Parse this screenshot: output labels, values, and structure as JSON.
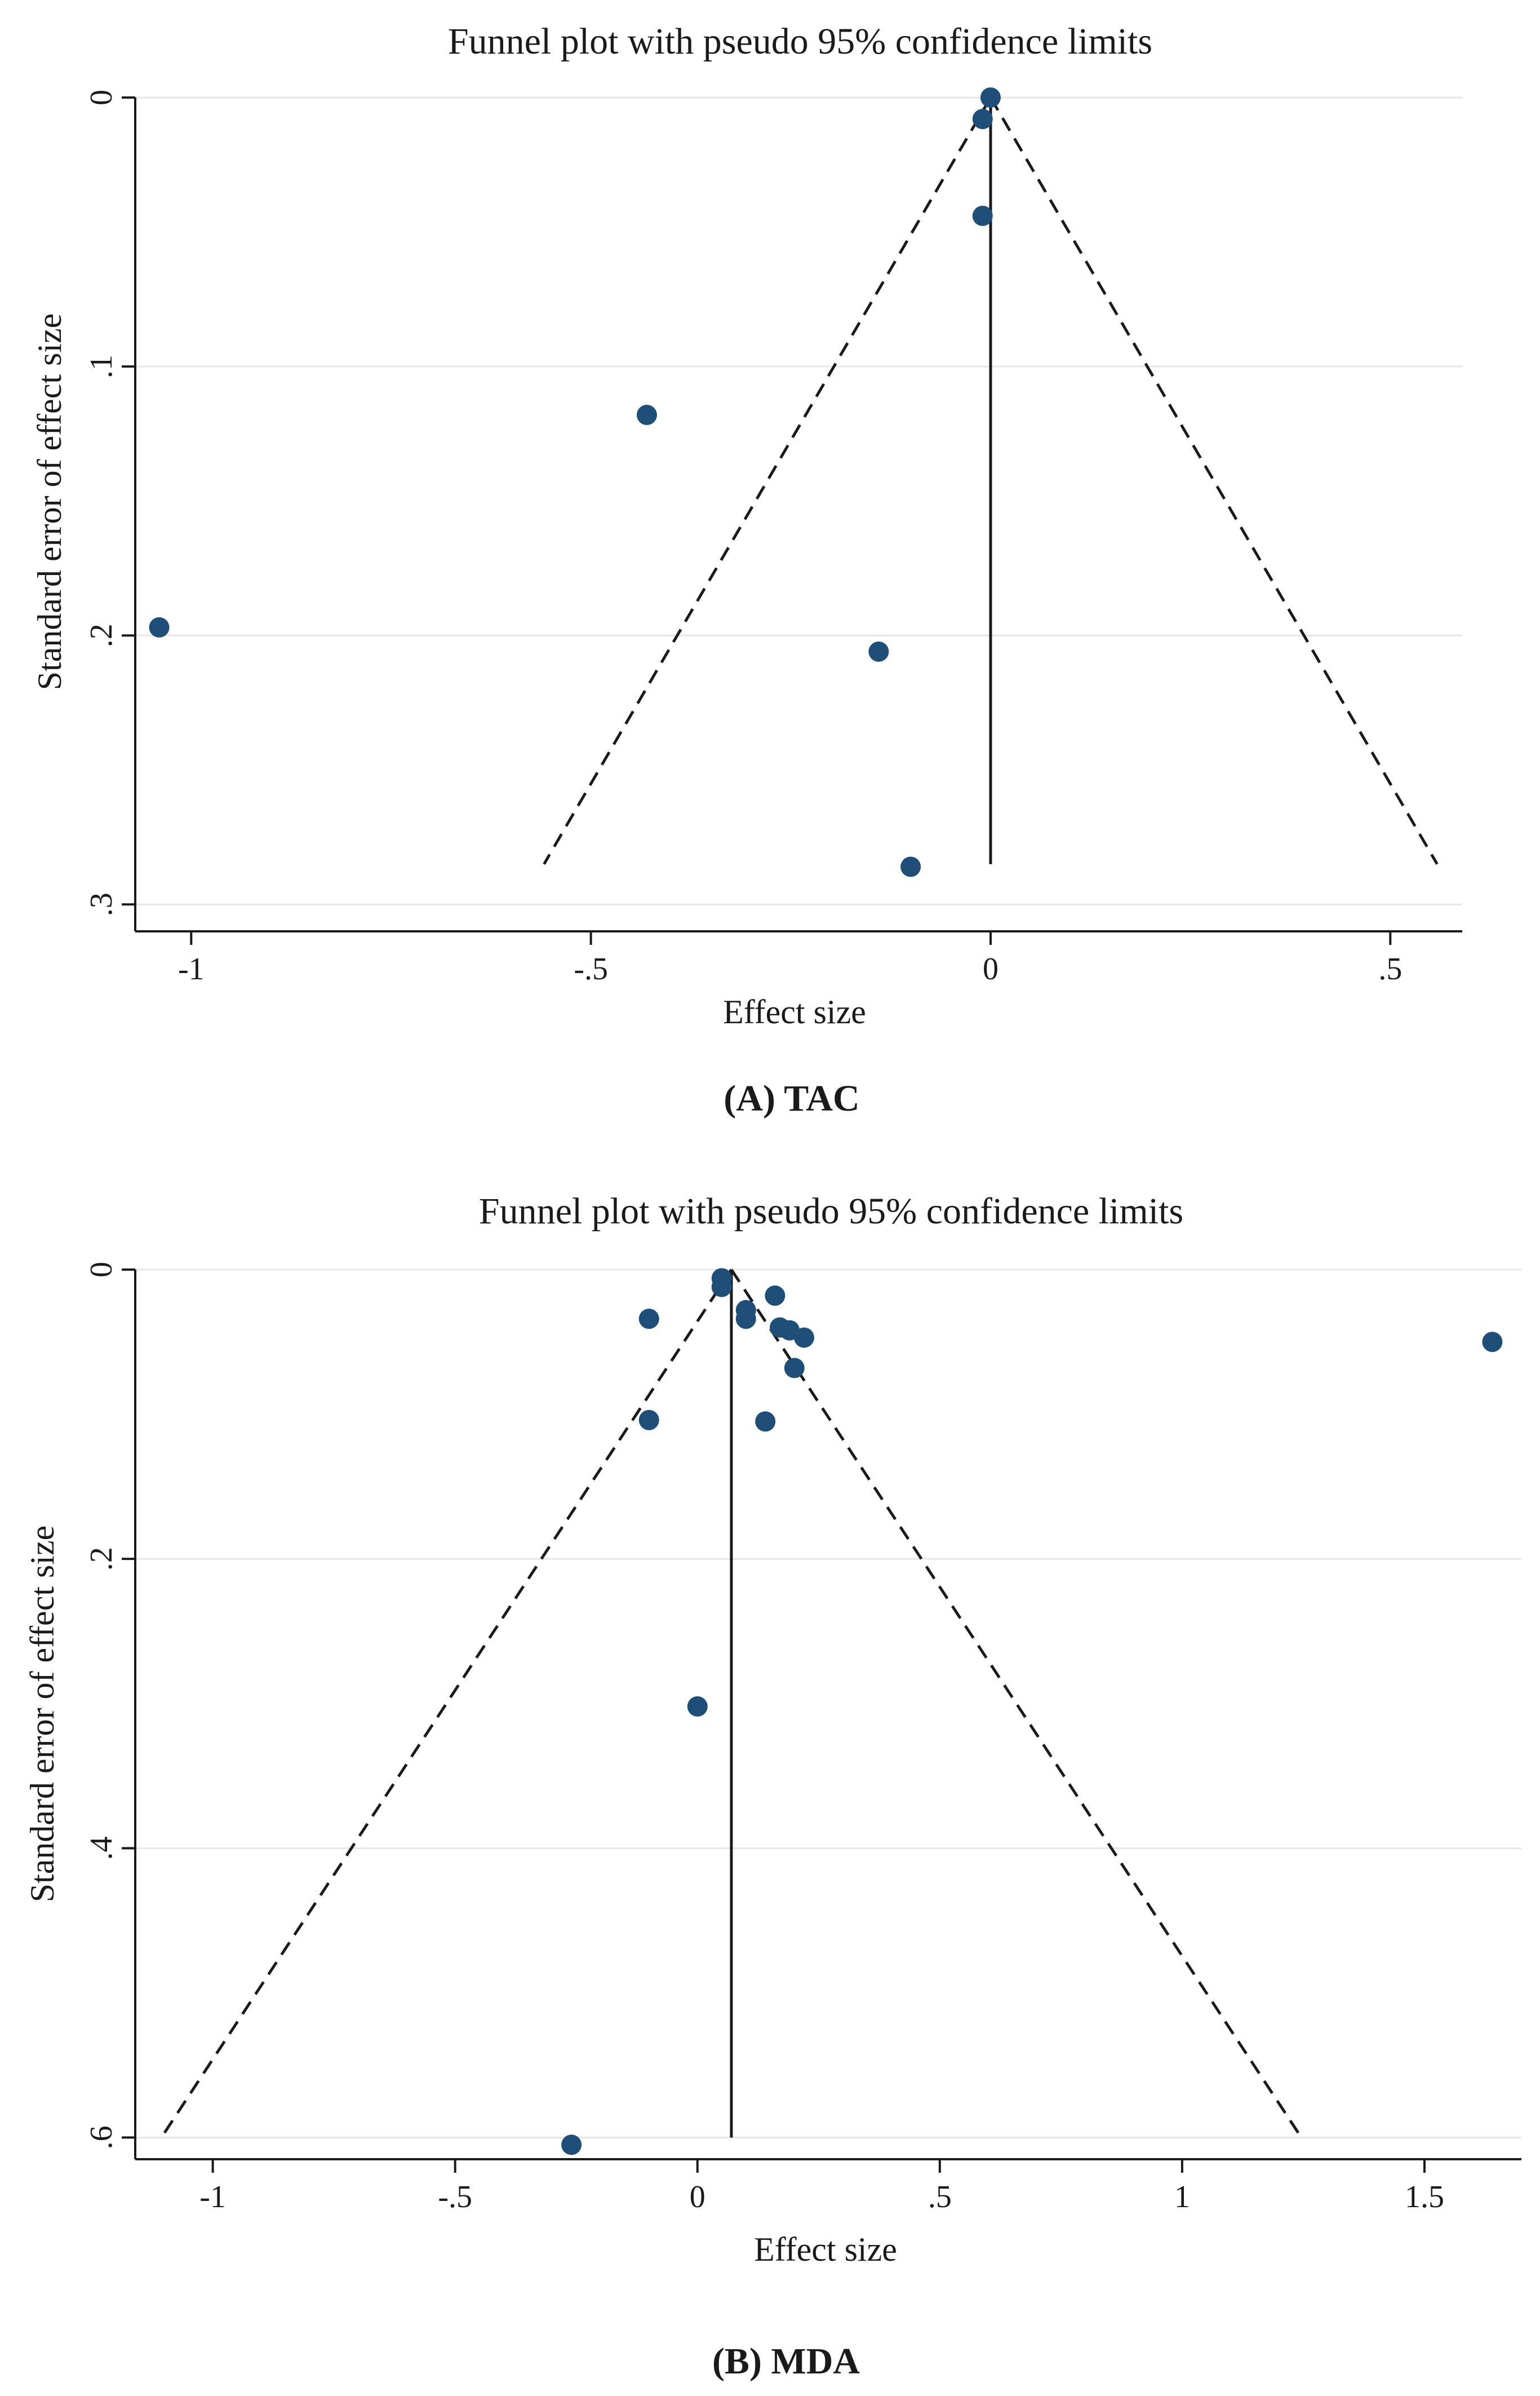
{
  "chart_data": [
    {
      "type": "scatter",
      "panel": "A",
      "title": "Funnel plot with pseudo 95% confidence limits",
      "xlabel": "Effect size",
      "ylabel": "Standard error of effect size",
      "caption": "(A) TAC",
      "xlim": [
        -1.07,
        0.59
      ],
      "ylim": [
        0,
        0.31
      ],
      "y_inverted": true,
      "xticks": [
        -1,
        -0.5,
        0,
        0.5
      ],
      "xtick_labels": [
        "-1",
        "-.5",
        "0",
        ".5"
      ],
      "yticks": [
        0,
        0.1,
        0.2,
        0.3
      ],
      "ytick_labels": [
        "0",
        ".1",
        ".2",
        ".3"
      ],
      "grid": "horizontal",
      "pooled_effect": 0.0,
      "funnel_max_se": 0.285,
      "marker_color": "#1f4e79",
      "points": [
        {
          "x": 0.0,
          "y": 0.0
        },
        {
          "x": -0.01,
          "y": 0.008
        },
        {
          "x": -0.01,
          "y": 0.044
        },
        {
          "x": -0.43,
          "y": 0.118
        },
        {
          "x": -1.04,
          "y": 0.197
        },
        {
          "x": -0.14,
          "y": 0.206
        },
        {
          "x": -0.1,
          "y": 0.286
        }
      ]
    },
    {
      "type": "scatter",
      "panel": "B",
      "title": "Funnel plot with pseudo 95% confidence limits",
      "xlabel": "Effect size",
      "ylabel": "Standard error of effect size",
      "caption": "(B) MDA",
      "xlim": [
        -1.16,
        1.7
      ],
      "ylim": [
        0,
        0.615
      ],
      "y_inverted": true,
      "xticks": [
        -1,
        -0.5,
        0,
        0.5,
        1,
        1.5
      ],
      "xtick_labels": [
        "-1",
        "-.5",
        "0",
        ".5",
        "1",
        "1.5"
      ],
      "yticks": [
        0,
        0.2,
        0.4,
        0.6
      ],
      "ytick_labels": [
        "0",
        ".2",
        ".4",
        ".6"
      ],
      "grid": "horizontal",
      "pooled_effect": 0.07,
      "funnel_max_se": 0.6,
      "marker_color": "#1f4e79",
      "points": [
        {
          "x": 0.05,
          "y": 0.006
        },
        {
          "x": 0.05,
          "y": 0.012
        },
        {
          "x": 0.16,
          "y": 0.018
        },
        {
          "x": 0.1,
          "y": 0.028
        },
        {
          "x": 0.1,
          "y": 0.034
        },
        {
          "x": -0.1,
          "y": 0.034
        },
        {
          "x": 0.17,
          "y": 0.04
        },
        {
          "x": 0.19,
          "y": 0.042
        },
        {
          "x": 0.22,
          "y": 0.047
        },
        {
          "x": 1.64,
          "y": 0.05
        },
        {
          "x": 0.2,
          "y": 0.068
        },
        {
          "x": -0.1,
          "y": 0.104
        },
        {
          "x": 0.14,
          "y": 0.105
        },
        {
          "x": 0.0,
          "y": 0.302
        },
        {
          "x": -0.26,
          "y": 0.605
        }
      ]
    }
  ]
}
